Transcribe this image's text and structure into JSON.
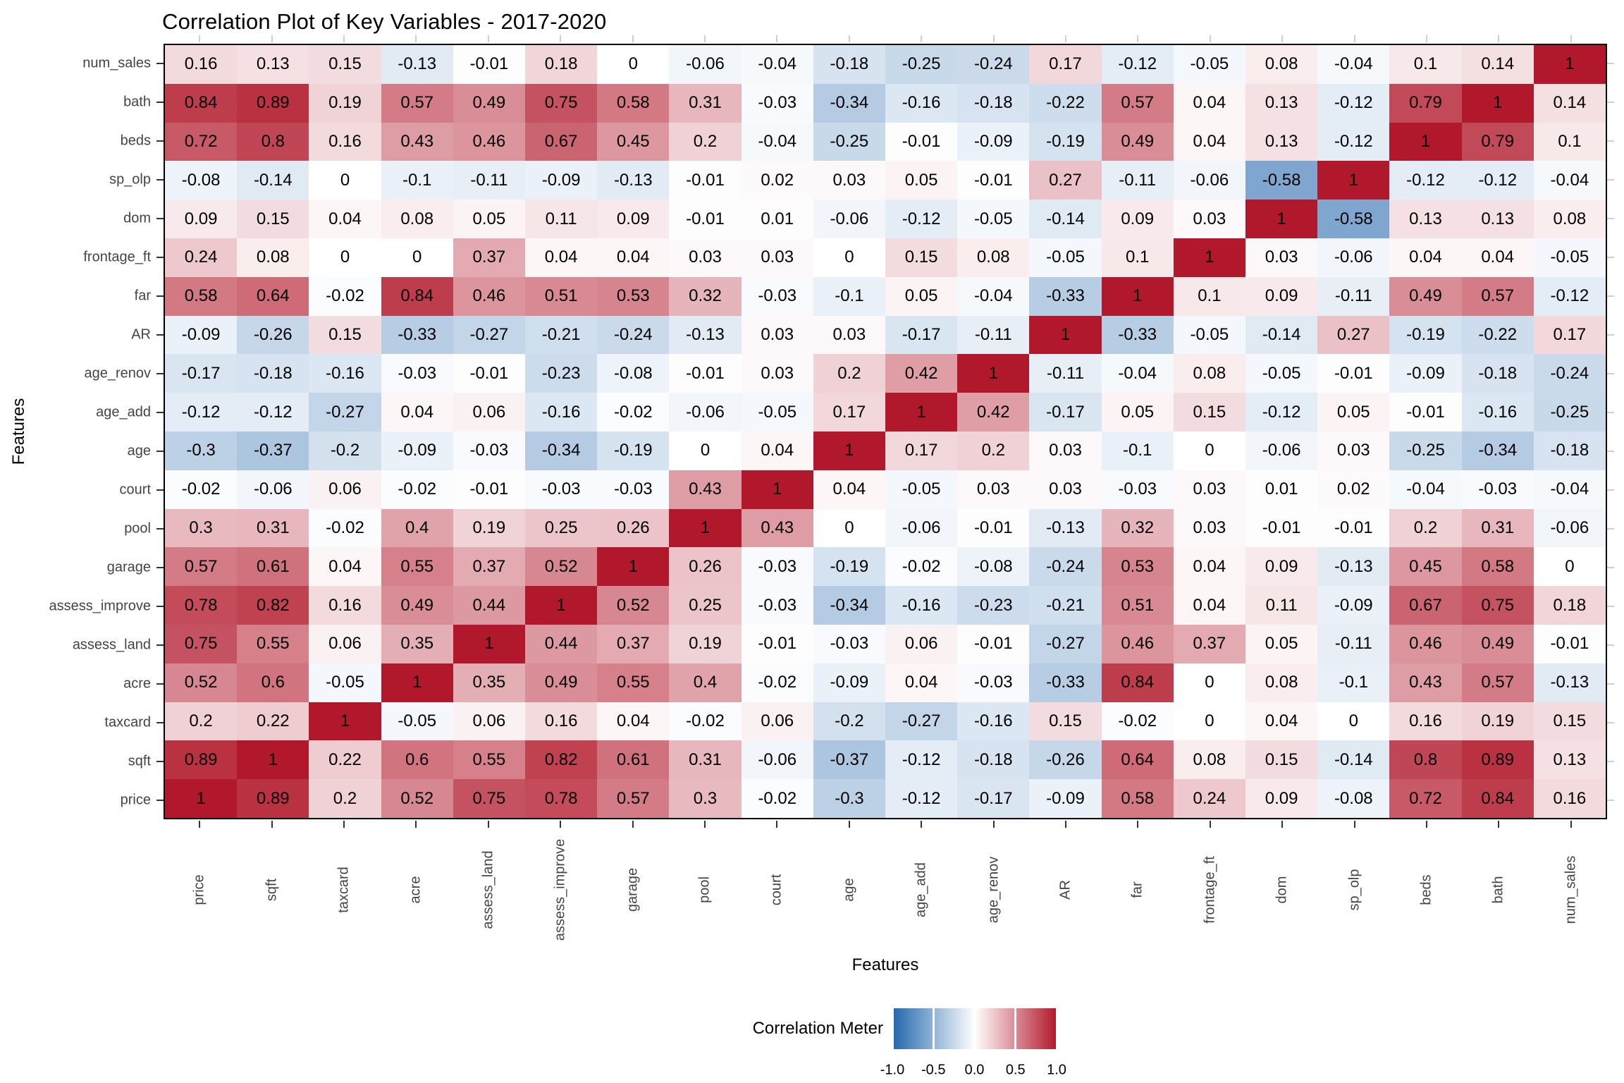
{
  "title": "Correlation Plot of Key Variables - 2017-2020",
  "chart_data": {
    "type": "heatmap",
    "title": "Correlation Plot of Key Variables - 2017-2020",
    "xlabel": "Features",
    "ylabel": "Features",
    "grid": false,
    "legend_position": "bottom",
    "rows": [
      "num_sales",
      "bath",
      "beds",
      "sp_olp",
      "dom",
      "frontage_ft",
      "far",
      "AR",
      "age_renov",
      "age_add",
      "age",
      "court",
      "pool",
      "garage",
      "assess_improve",
      "assess_land",
      "acre",
      "taxcard",
      "sqft",
      "price"
    ],
    "columns": [
      "price",
      "sqft",
      "taxcard",
      "acre",
      "assess_land",
      "assess_improve",
      "garage",
      "pool",
      "court",
      "age",
      "age_add",
      "age_renov",
      "AR",
      "far",
      "frontage_ft",
      "dom",
      "sp_olp",
      "beds",
      "bath",
      "num_sales"
    ],
    "values": [
      [
        0.16,
        0.13,
        0.15,
        -0.13,
        -0.01,
        0.18,
        0,
        -0.06,
        -0.04,
        -0.18,
        -0.25,
        -0.24,
        0.17,
        -0.12,
        -0.05,
        0.08,
        -0.04,
        0.1,
        0.14,
        1
      ],
      [
        0.84,
        0.89,
        0.19,
        0.57,
        0.49,
        0.75,
        0.58,
        0.31,
        -0.03,
        -0.34,
        -0.16,
        -0.18,
        -0.22,
        0.57,
        0.04,
        0.13,
        -0.12,
        0.79,
        1,
        0.14
      ],
      [
        0.72,
        0.8,
        0.16,
        0.43,
        0.46,
        0.67,
        0.45,
        0.2,
        -0.04,
        -0.25,
        -0.01,
        -0.09,
        -0.19,
        0.49,
        0.04,
        0.13,
        -0.12,
        1,
        0.79,
        0.1
      ],
      [
        -0.08,
        -0.14,
        0,
        -0.1,
        -0.11,
        -0.09,
        -0.13,
        -0.01,
        0.02,
        0.03,
        0.05,
        -0.01,
        0.27,
        -0.11,
        -0.06,
        -0.58,
        1,
        -0.12,
        -0.12,
        -0.04
      ],
      [
        0.09,
        0.15,
        0.04,
        0.08,
        0.05,
        0.11,
        0.09,
        -0.01,
        0.01,
        -0.06,
        -0.12,
        -0.05,
        -0.14,
        0.09,
        0.03,
        1,
        -0.58,
        0.13,
        0.13,
        0.08
      ],
      [
        0.24,
        0.08,
        0,
        0,
        0.37,
        0.04,
        0.04,
        0.03,
        0.03,
        0,
        0.15,
        0.08,
        -0.05,
        0.1,
        1,
        0.03,
        -0.06,
        0.04,
        0.04,
        -0.05
      ],
      [
        0.58,
        0.64,
        -0.02,
        0.84,
        0.46,
        0.51,
        0.53,
        0.32,
        -0.03,
        -0.1,
        0.05,
        -0.04,
        -0.33,
        1,
        0.1,
        0.09,
        -0.11,
        0.49,
        0.57,
        -0.12
      ],
      [
        -0.09,
        -0.26,
        0.15,
        -0.33,
        -0.27,
        -0.21,
        -0.24,
        -0.13,
        0.03,
        0.03,
        -0.17,
        -0.11,
        1,
        -0.33,
        -0.05,
        -0.14,
        0.27,
        -0.19,
        -0.22,
        0.17
      ],
      [
        -0.17,
        -0.18,
        -0.16,
        -0.03,
        -0.01,
        -0.23,
        -0.08,
        -0.01,
        0.03,
        0.2,
        0.42,
        1,
        -0.11,
        -0.04,
        0.08,
        -0.05,
        -0.01,
        -0.09,
        -0.18,
        -0.24
      ],
      [
        -0.12,
        -0.12,
        -0.27,
        0.04,
        0.06,
        -0.16,
        -0.02,
        -0.06,
        -0.05,
        0.17,
        1,
        0.42,
        -0.17,
        0.05,
        0.15,
        -0.12,
        0.05,
        -0.01,
        -0.16,
        -0.25
      ],
      [
        -0.3,
        -0.37,
        -0.2,
        -0.09,
        -0.03,
        -0.34,
        -0.19,
        0,
        0.04,
        1,
        0.17,
        0.2,
        0.03,
        -0.1,
        0,
        -0.06,
        0.03,
        -0.25,
        -0.34,
        -0.18
      ],
      [
        -0.02,
        -0.06,
        0.06,
        -0.02,
        -0.01,
        -0.03,
        -0.03,
        0.43,
        1,
        0.04,
        -0.05,
        0.03,
        0.03,
        -0.03,
        0.03,
        0.01,
        0.02,
        -0.04,
        -0.03,
        -0.04
      ],
      [
        0.3,
        0.31,
        -0.02,
        0.4,
        0.19,
        0.25,
        0.26,
        1,
        0.43,
        0,
        -0.06,
        -0.01,
        -0.13,
        0.32,
        0.03,
        -0.01,
        -0.01,
        0.2,
        0.31,
        -0.06
      ],
      [
        0.57,
        0.61,
        0.04,
        0.55,
        0.37,
        0.52,
        1,
        0.26,
        -0.03,
        -0.19,
        -0.02,
        -0.08,
        -0.24,
        0.53,
        0.04,
        0.09,
        -0.13,
        0.45,
        0.58,
        0
      ],
      [
        0.78,
        0.82,
        0.16,
        0.49,
        0.44,
        1,
        0.52,
        0.25,
        -0.03,
        -0.34,
        -0.16,
        -0.23,
        -0.21,
        0.51,
        0.04,
        0.11,
        -0.09,
        0.67,
        0.75,
        0.18
      ],
      [
        0.75,
        0.55,
        0.06,
        0.35,
        1,
        0.44,
        0.37,
        0.19,
        -0.01,
        -0.03,
        0.06,
        -0.01,
        -0.27,
        0.46,
        0.37,
        0.05,
        -0.11,
        0.46,
        0.49,
        -0.01
      ],
      [
        0.52,
        0.6,
        -0.05,
        1,
        0.35,
        0.49,
        0.55,
        0.4,
        -0.02,
        -0.09,
        0.04,
        -0.03,
        -0.33,
        0.84,
        0,
        0.08,
        -0.1,
        0.43,
        0.57,
        -0.13
      ],
      [
        0.2,
        0.22,
        1,
        -0.05,
        0.06,
        0.16,
        0.04,
        -0.02,
        0.06,
        -0.2,
        -0.27,
        -0.16,
        0.15,
        -0.02,
        0,
        0.04,
        0,
        0.16,
        0.19,
        0.15
      ],
      [
        0.89,
        1,
        0.22,
        0.6,
        0.55,
        0.82,
        0.61,
        0.31,
        -0.06,
        -0.37,
        -0.12,
        -0.18,
        -0.26,
        0.64,
        0.08,
        0.15,
        -0.14,
        0.8,
        0.89,
        0.13
      ],
      [
        1,
        0.89,
        0.2,
        0.52,
        0.75,
        0.78,
        0.57,
        0.3,
        -0.02,
        -0.3,
        -0.12,
        -0.17,
        -0.09,
        0.58,
        0.24,
        0.09,
        -0.08,
        0.72,
        0.84,
        0.16
      ]
    ],
    "legend": {
      "title": "Correlation Meter",
      "tick_labels": [
        "-1.0",
        "-0.5",
        "0.0",
        "0.5",
        "1.0"
      ],
      "min": -1,
      "max": 1
    },
    "colors": {
      "negative_end": "#2166ac",
      "midpoint": "#ffffff",
      "positive_end": "#b2182b",
      "cell_text": "#000000",
      "axis_text": "#444444",
      "panel_border": "#000000"
    }
  }
}
